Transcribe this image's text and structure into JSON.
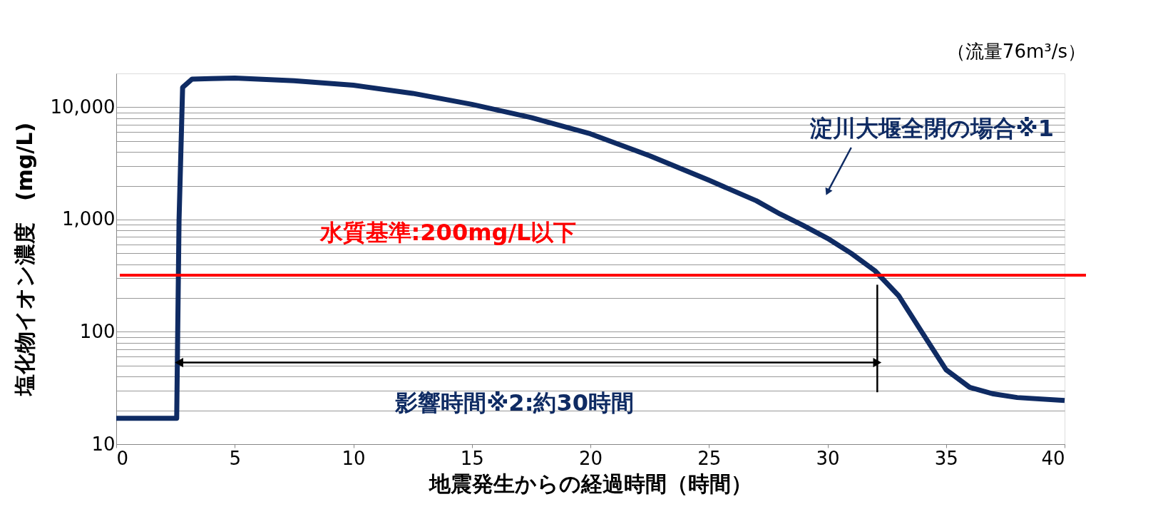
{
  "chart_data": {
    "type": "line",
    "xlabel": "地震発生からの経過時間（時間）",
    "ylabel": "塩化物イオン濃度　(mg/L)",
    "log": "y",
    "grid": "y",
    "line_style": "solid",
    "marker": "none",
    "xlim": [
      0,
      40
    ],
    "xticks": [
      0,
      5,
      10,
      15,
      20,
      25,
      30,
      35,
      40
    ],
    "ylim": [
      10,
      20000
    ],
    "yticks": [
      {
        "value": 10,
        "label": "10"
      },
      {
        "value": 20,
        "label": null
      },
      {
        "value": 30,
        "label": null
      },
      {
        "value": 40,
        "label": null
      },
      {
        "value": 50,
        "label": null
      },
      {
        "value": 60,
        "label": null
      },
      {
        "value": 70,
        "label": null
      },
      {
        "value": 80,
        "label": null
      },
      {
        "value": 90,
        "label": null
      },
      {
        "value": 100,
        "label": "100"
      },
      {
        "value": 200,
        "label": null
      },
      {
        "value": 300,
        "label": null
      },
      {
        "value": 400,
        "label": null
      },
      {
        "value": 500,
        "label": null
      },
      {
        "value": 600,
        "label": null
      },
      {
        "value": 700,
        "label": null
      },
      {
        "value": 800,
        "label": null
      },
      {
        "value": 900,
        "label": null
      },
      {
        "value": 1000,
        "label": "1,000"
      },
      {
        "value": 2000,
        "label": null
      },
      {
        "value": 3000,
        "label": null
      },
      {
        "value": 4000,
        "label": null
      },
      {
        "value": 5000,
        "label": null
      },
      {
        "value": 6000,
        "label": null
      },
      {
        "value": 7000,
        "label": null
      },
      {
        "value": 8000,
        "label": null
      },
      {
        "value": 9000,
        "label": null
      },
      {
        "value": 10000,
        "label": "10,000"
      }
    ],
    "series": [
      {
        "color": "#0f2b63",
        "x": [
          0,
          2.5,
          2.55,
          2.65,
          2.8,
          3.2,
          4,
          5,
          7.5,
          10,
          12.5,
          15,
          17.5,
          20,
          22.5,
          25,
          27,
          28,
          29,
          30,
          31,
          32,
          33,
          34,
          35,
          36,
          37,
          38,
          40
        ],
        "values": [
          17,
          17,
          17,
          1000,
          15000,
          17800,
          18000,
          18200,
          17200,
          15700,
          13300,
          10600,
          8100,
          5800,
          3700,
          2240,
          1470,
          1120,
          880,
          680,
          500,
          350,
          210,
          98,
          46,
          32,
          28,
          26,
          24.5
        ]
      }
    ],
    "ref_lines": [
      {
        "axis": "y",
        "value": 320,
        "color": "#ff0000"
      },
      {
        "axis": "x",
        "value": 32.1,
        "color": "#000000"
      }
    ],
    "annotations": [
      "（流量76m³/s）",
      "水質基準:200mg/L以下",
      "淀川大堰全閉の場合※1",
      "影響時間※2:約30時間"
    ]
  }
}
